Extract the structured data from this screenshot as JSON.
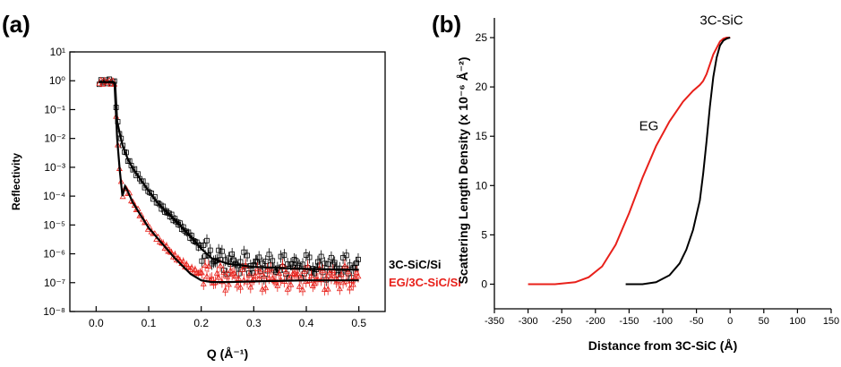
{
  "chart_data": [
    {
      "panel": "(a)",
      "type": "scatter",
      "xlabel": "Q (Å⁻¹)",
      "ylabel": "Reflectivity",
      "xlim": [
        -0.05,
        0.55
      ],
      "ylim_log10": [
        -8,
        1
      ],
      "yscale": "log",
      "xticks": [
        "0.0",
        "0.1",
        "0.2",
        "0.3",
        "0.4",
        "0.5"
      ],
      "yticks": [
        "10⁻⁸",
        "10⁻⁷",
        "10⁻⁶",
        "10⁻⁵",
        "10⁻⁴",
        "10⁻³",
        "10⁻²",
        "10⁻¹",
        "10⁰",
        "10¹"
      ],
      "series": [
        {
          "name": "3C-SiC/Si",
          "color": "#000000",
          "marker": "open-square",
          "x": [
            0.005,
            0.02,
            0.03,
            0.035,
            0.04,
            0.045,
            0.05,
            0.06,
            0.07,
            0.08,
            0.1,
            0.12,
            0.15,
            0.18,
            0.2,
            0.22,
            0.25,
            0.3,
            0.35,
            0.4,
            0.45,
            0.5
          ],
          "y": [
            0.9,
            0.95,
            0.95,
            0.9,
            0.04,
            0.015,
            0.006,
            0.002,
            0.0009,
            0.0005,
            0.00015,
            5e-05,
            1.5e-05,
            4e-06,
            1.5e-06,
            8e-07,
            5e-07,
            4e-07,
            3.8e-07,
            3.6e-07,
            3.5e-07,
            3.4e-07
          ]
        },
        {
          "name": "EG/3C-SiC/Si",
          "color": "#e8201a",
          "marker": "open-triangle",
          "x": [
            0.005,
            0.02,
            0.03,
            0.035,
            0.04,
            0.045,
            0.05,
            0.055,
            0.06,
            0.07,
            0.08,
            0.1,
            0.12,
            0.15,
            0.18,
            0.2,
            0.22,
            0.25,
            0.3,
            0.35,
            0.4,
            0.45,
            0.5
          ],
          "y": [
            0.9,
            0.95,
            0.9,
            0.85,
            0.01,
            0.0008,
            0.0001,
            0.0002,
            0.00015,
            6e-05,
            3e-05,
            8e-06,
            3e-06,
            8e-07,
            3e-07,
            2e-07,
            1.6e-07,
            1.5e-07,
            1.5e-07,
            1.5e-07,
            1.4e-07,
            1.4e-07,
            1.4e-07
          ]
        }
      ],
      "fits": [
        {
          "color": "#000000",
          "x": [
            0.005,
            0.03,
            0.036,
            0.04,
            0.045,
            0.05,
            0.06,
            0.07,
            0.08,
            0.1,
            0.12,
            0.15,
            0.18,
            0.2,
            0.22,
            0.25,
            0.3,
            0.4,
            0.5
          ],
          "y": [
            0.9,
            0.9,
            0.85,
            0.04,
            0.015,
            0.006,
            0.002,
            0.0009,
            0.0005,
            0.00015,
            5e-05,
            1.5e-05,
            4e-06,
            1.5e-06,
            7e-07,
            4.5e-07,
            3.5e-07,
            3e-07,
            2.8e-07
          ]
        },
        {
          "color": "#000000",
          "x": [
            0.005,
            0.03,
            0.035,
            0.04,
            0.045,
            0.05,
            0.055,
            0.06,
            0.07,
            0.08,
            0.1,
            0.12,
            0.15,
            0.18,
            0.2,
            0.22,
            0.25,
            0.3,
            0.4,
            0.5
          ],
          "y": [
            0.9,
            0.9,
            0.8,
            0.01,
            0.0008,
            0.0001,
            0.00022,
            0.00015,
            6e-05,
            3e-05,
            8e-06,
            3e-06,
            7e-07,
            2e-07,
            1.2e-07,
            1.05e-07,
            1.05e-07,
            1.1e-07,
            1.2e-07,
            1.2e-07
          ]
        }
      ]
    },
    {
      "panel": "(b)",
      "type": "line",
      "xlabel": "Distance from 3C-SiC (Å)",
      "ylabel": "Scattering Length Density (x 10⁻⁶ Å⁻²)",
      "xlim": [
        -350,
        150
      ],
      "ylim": [
        -2.5,
        27
      ],
      "xticks": [
        "-350",
        "-300",
        "-250",
        "-200",
        "-150",
        "-100",
        "-50",
        "0",
        "50",
        "100",
        "150"
      ],
      "yticks": [
        "0",
        "5",
        "10",
        "15",
        "20",
        "25"
      ],
      "series": [
        {
          "name": "EG",
          "color": "#e8201a",
          "x": [
            -300,
            -260,
            -230,
            -210,
            -190,
            -170,
            -150,
            -130,
            -110,
            -90,
            -70,
            -55,
            -45,
            -40,
            -35,
            -25,
            -15,
            -10,
            -5,
            0
          ],
          "y": [
            0,
            0,
            0.2,
            0.7,
            1.8,
            4.0,
            7.2,
            10.8,
            14.0,
            16.5,
            18.5,
            19.6,
            20.2,
            20.6,
            21.3,
            23.3,
            24.6,
            24.9,
            25.0,
            25.0
          ]
        },
        {
          "name": "3C-SiC",
          "color": "#000000",
          "x": [
            -155,
            -130,
            -110,
            -90,
            -75,
            -65,
            -55,
            -45,
            -40,
            -35,
            -30,
            -25,
            -20,
            -15,
            -10,
            -5,
            0
          ],
          "y": [
            0,
            0,
            0.2,
            0.9,
            2.1,
            3.5,
            5.5,
            8.5,
            11.2,
            14.5,
            18.0,
            21.0,
            23.0,
            24.2,
            24.7,
            24.9,
            25.0
          ]
        }
      ]
    }
  ]
}
